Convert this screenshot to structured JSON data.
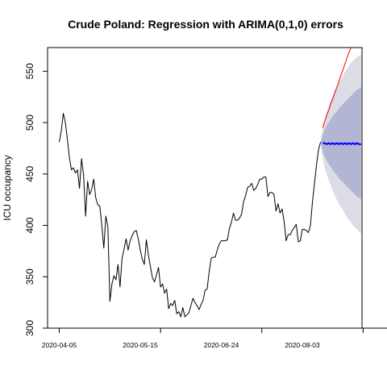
{
  "chart_data": {
    "type": "line",
    "title": "Crude Poland: Regression with ARIMA(0,1,0) errors",
    "xlabel": "",
    "ylabel": "ICU occupancy",
    "x_start_date": "2020-04-05",
    "x_tick_labels": [
      "2020-04-05",
      "2020-05-15",
      "2020-06-24",
      "2020-08-03"
    ],
    "y_tick_labels": [
      "300",
      "350",
      "400",
      "450",
      "500",
      "550"
    ],
    "ylim": [
      300,
      573
    ],
    "grid": false,
    "series": [
      {
        "kind": "observed",
        "color": "#000000",
        "values": [
          481,
          492,
          509,
          500,
          484,
          466,
          454,
          456,
          451,
          454,
          436,
          465,
          449,
          409,
          443,
          430,
          435,
          445,
          427,
          420,
          419,
          400,
          378,
          409,
          399,
          326,
          343,
          351,
          347,
          362,
          340,
          368,
          377,
          387,
          376,
          385,
          390,
          394,
          395,
          387,
          376,
          367,
          362,
          386,
          371,
          360,
          349,
          345,
          352,
          359,
          340,
          343,
          334,
          338,
          319,
          324,
          322,
          327,
          314,
          316,
          311,
          320,
          311,
          313,
          315,
          322,
          329,
          325,
          322,
          318,
          323,
          327,
          337,
          338,
          355,
          368,
          369,
          369,
          376,
          382,
          385,
          385,
          385,
          386,
          397,
          403,
          412,
          405,
          405,
          407,
          411,
          423,
          429,
          437,
          438,
          441,
          434,
          436,
          440,
          445,
          445,
          447,
          447,
          428,
          432,
          432,
          430,
          414,
          421,
          412,
          416,
          404,
          385,
          391,
          391,
          395,
          398,
          401,
          384,
          385,
          396,
          396,
          395,
          393,
          400,
          423,
          441,
          459,
          474,
          481
        ]
      },
      {
        "kind": "forecast_mean",
        "color": "#0000ff",
        "values": [
          480,
          480,
          479,
          480,
          479,
          480,
          479,
          480,
          479,
          480,
          479,
          480,
          479,
          480,
          479,
          480,
          479,
          480,
          479,
          479
        ]
      },
      {
        "kind": "actual_after",
        "color": "#ff0000",
        "values": [
          495,
          501,
          507,
          512,
          518,
          523,
          529,
          534,
          540,
          546,
          551,
          557,
          563,
          568,
          573,
          579
        ]
      }
    ],
    "intervals": [
      {
        "level": "95%",
        "color": "#dcdce4",
        "lower": [
          466,
          457,
          450,
          444,
          439,
          434,
          429,
          425,
          421,
          418,
          415,
          411,
          408,
          405,
          403,
          400,
          398,
          396,
          394,
          392
        ],
        "upper": [
          494,
          503,
          510,
          516,
          522,
          526,
          531,
          535,
          539,
          542,
          546,
          549,
          552,
          555,
          558,
          560,
          562,
          564,
          565,
          566
        ]
      },
      {
        "level": "80%",
        "color": "#b2b6d4",
        "lower": [
          472,
          467,
          463,
          460,
          457,
          454,
          451,
          449,
          446,
          444,
          442,
          440,
          438,
          436,
          434,
          432,
          430,
          428,
          427,
          425
        ],
        "upper": [
          488,
          493,
          497,
          500,
          503,
          506,
          509,
          511,
          514,
          516,
          518,
          520,
          522,
          524,
          526,
          528,
          530,
          532,
          533,
          535
        ]
      }
    ]
  }
}
